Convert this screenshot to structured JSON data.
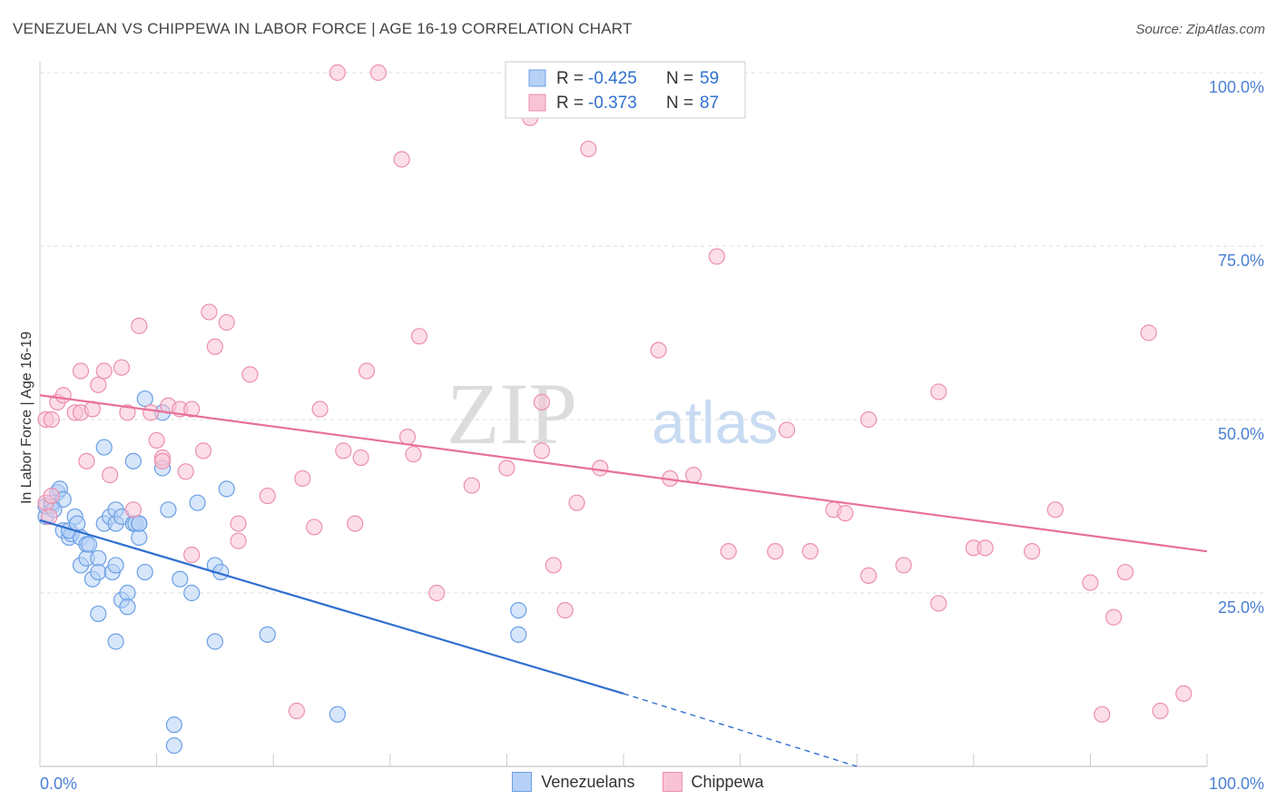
{
  "chart_data": {
    "type": "scatter",
    "title": "VENEZUELAN VS CHIPPEWA IN LABOR FORCE | AGE 16-19 CORRELATION CHART",
    "source": "Source: ZipAtlas.com",
    "ylabel": "In Labor Force | Age 16-19",
    "xlabel": "",
    "xlim": [
      0,
      100
    ],
    "ylim": [
      0,
      100
    ],
    "x_tick_labels": [
      "0.0%",
      "100.0%"
    ],
    "y_tick_labels": [
      "25.0%",
      "50.0%",
      "75.0%",
      "100.0%"
    ],
    "y_ticks": [
      25,
      50,
      75,
      100
    ],
    "watermark": {
      "zip": "ZIP",
      "atlas": "atlas"
    },
    "legend_top": [
      {
        "r_label": "R =",
        "r_value": "-0.425",
        "n_label": "N =",
        "n_value": "59"
      },
      {
        "r_label": "R =",
        "r_value": "-0.373",
        "n_label": "N =",
        "n_value": "87"
      }
    ],
    "series": [
      {
        "name": "Venezuelans",
        "color": "#6b9fe6",
        "fill": "#b7d1f6",
        "line_color": "#2f6fd0",
        "trend": {
          "x0": 0,
          "y0": 35.5,
          "x1": 50,
          "y1": 10.5,
          "dash_to_x": 70,
          "dash_to_y": 0
        },
        "points": [
          [
            0.5,
            36
          ],
          [
            0.5,
            37.5
          ],
          [
            1,
            37.5
          ],
          [
            1,
            38
          ],
          [
            1.5,
            39.5
          ],
          [
            1.7,
            40
          ],
          [
            2,
            34
          ],
          [
            2,
            38.5
          ],
          [
            2.5,
            33
          ],
          [
            2.7,
            33.5
          ],
          [
            2.5,
            34
          ],
          [
            3,
            36
          ],
          [
            3.2,
            35
          ],
          [
            3.5,
            33
          ],
          [
            3.5,
            29
          ],
          [
            4,
            32
          ],
          [
            4,
            30
          ],
          [
            4.2,
            32
          ],
          [
            4.5,
            27
          ],
          [
            5,
            30
          ],
          [
            5,
            28
          ],
          [
            5,
            22
          ],
          [
            5.5,
            46
          ],
          [
            5.5,
            35
          ],
          [
            6,
            36
          ],
          [
            6.2,
            28
          ],
          [
            6.5,
            35
          ],
          [
            6.5,
            29
          ],
          [
            6.5,
            18
          ],
          [
            6.5,
            37
          ],
          [
            7,
            36
          ],
          [
            7,
            24
          ],
          [
            7.5,
            25
          ],
          [
            7.5,
            23
          ],
          [
            8,
            35
          ],
          [
            8,
            44
          ],
          [
            8.2,
            35
          ],
          [
            8.5,
            35
          ],
          [
            8.5,
            33
          ],
          [
            8.5,
            35
          ],
          [
            9,
            53
          ],
          [
            9,
            28
          ],
          [
            10.5,
            51
          ],
          [
            10.5,
            43
          ],
          [
            11,
            37
          ],
          [
            11.5,
            6
          ],
          [
            11.5,
            3
          ],
          [
            12,
            27
          ],
          [
            13,
            25
          ],
          [
            13.5,
            38
          ],
          [
            15,
            29
          ],
          [
            15,
            18
          ],
          [
            15.5,
            28
          ],
          [
            16,
            40
          ],
          [
            19.5,
            19
          ],
          [
            25.5,
            7.5
          ],
          [
            41,
            19
          ],
          [
            41,
            22.5
          ],
          [
            1.2,
            37
          ]
        ]
      },
      {
        "name": "Chippewa",
        "color": "#ec8fae",
        "fill": "#f9c3d6",
        "line_color": "#e8709a",
        "trend": {
          "x0": 0,
          "y0": 53.5,
          "x1": 100,
          "y1": 31
        },
        "points": [
          [
            0.5,
            38
          ],
          [
            0.5,
            50
          ],
          [
            1,
            50
          ],
          [
            1.5,
            52.5
          ],
          [
            2,
            53.5
          ],
          [
            3,
            51
          ],
          [
            3.5,
            57
          ],
          [
            3.5,
            51
          ],
          [
            4,
            44
          ],
          [
            4.5,
            51.5
          ],
          [
            5,
            55
          ],
          [
            5.5,
            57
          ],
          [
            6,
            42
          ],
          [
            7,
            57.5
          ],
          [
            7.5,
            51
          ],
          [
            8,
            37
          ],
          [
            8.5,
            63.5
          ],
          [
            9.5,
            51
          ],
          [
            10,
            47
          ],
          [
            10.5,
            44.5
          ],
          [
            10.5,
            44
          ],
          [
            11,
            52
          ],
          [
            12,
            51.5
          ],
          [
            12.5,
            42.5
          ],
          [
            13,
            51.5
          ],
          [
            13,
            30.5
          ],
          [
            14,
            45.5
          ],
          [
            14.5,
            65.5
          ],
          [
            15,
            60.5
          ],
          [
            16,
            64
          ],
          [
            17,
            32.5
          ],
          [
            17,
            35
          ],
          [
            18,
            56.5
          ],
          [
            19.5,
            39
          ],
          [
            22,
            8
          ],
          [
            22.5,
            41.5
          ],
          [
            23.5,
            34.5
          ],
          [
            24,
            51.5
          ],
          [
            25.5,
            100
          ],
          [
            26,
            45.5
          ],
          [
            27,
            35
          ],
          [
            27.5,
            44.5
          ],
          [
            28,
            57
          ],
          [
            29,
            100
          ],
          [
            31,
            87.5
          ],
          [
            31.5,
            47.5
          ],
          [
            32,
            45
          ],
          [
            32.5,
            62
          ],
          [
            34,
            25
          ],
          [
            37,
            40.5
          ],
          [
            40,
            43
          ],
          [
            42,
            93.5
          ],
          [
            43,
            52.5
          ],
          [
            43,
            45.5
          ],
          [
            44,
            29
          ],
          [
            45,
            22.5
          ],
          [
            46,
            38
          ],
          [
            47,
            89
          ],
          [
            48,
            43
          ],
          [
            53,
            60
          ],
          [
            54,
            41.5
          ],
          [
            56,
            42
          ],
          [
            58,
            73.5
          ],
          [
            59,
            31
          ],
          [
            63,
            31
          ],
          [
            64,
            48.5
          ],
          [
            66,
            31
          ],
          [
            68,
            37
          ],
          [
            69,
            36.5
          ],
          [
            71,
            27.5
          ],
          [
            71,
            50
          ],
          [
            74,
            29
          ],
          [
            77,
            23.5
          ],
          [
            77,
            54
          ],
          [
            80,
            31.5
          ],
          [
            81,
            31.5
          ],
          [
            85,
            31
          ],
          [
            87,
            37
          ],
          [
            90,
            26.5
          ],
          [
            91,
            7.5
          ],
          [
            92,
            21.5
          ],
          [
            93,
            28
          ],
          [
            95,
            62.5
          ],
          [
            96,
            8
          ],
          [
            98,
            10.5
          ],
          [
            0.8,
            36
          ],
          [
            1,
            39
          ]
        ]
      }
    ]
  }
}
